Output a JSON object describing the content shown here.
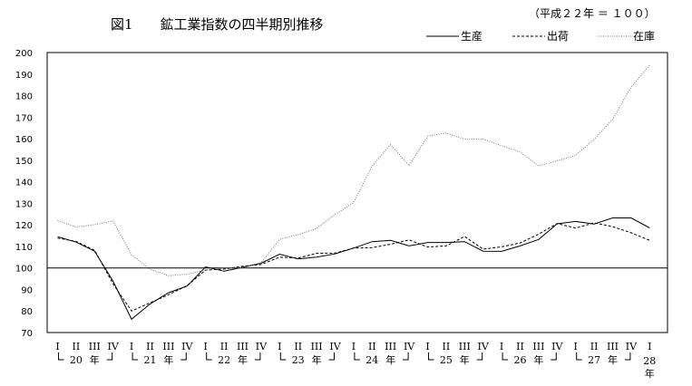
{
  "chart_data": {
    "type": "line",
    "title": "図1　　鉱工業指数の四半期別推移",
    "subtitle": "（平成２２年 ＝ １００）",
    "ylim": [
      70,
      200
    ],
    "yticks": [
      70,
      80,
      90,
      100,
      110,
      120,
      130,
      140,
      150,
      160,
      170,
      180,
      190,
      200
    ],
    "reference_line": 100,
    "grid": false,
    "legend_position": "top-right",
    "quarter_labels": [
      "I",
      "II",
      "III",
      "IV",
      "I",
      "II",
      "III",
      "IV",
      "I",
      "II",
      "III",
      "IV",
      "I",
      "II",
      "III",
      "IV",
      "I",
      "II",
      "III",
      "IV",
      "I",
      "II",
      "III",
      "IV",
      "I",
      "II",
      "III",
      "IV",
      "I",
      "II",
      "III",
      "IV",
      "I"
    ],
    "year_labels": [
      {
        "label": "20",
        "index": 1
      },
      {
        "label": "年",
        "index": 2
      },
      {
        "label": "21",
        "index": 5
      },
      {
        "label": "年",
        "index": 6
      },
      {
        "label": "22",
        "index": 9
      },
      {
        "label": "年",
        "index": 10
      },
      {
        "label": "23",
        "index": 13
      },
      {
        "label": "年",
        "index": 14
      },
      {
        "label": "24",
        "index": 17
      },
      {
        "label": "年",
        "index": 18
      },
      {
        "label": "25",
        "index": 21
      },
      {
        "label": "年",
        "index": 22
      },
      {
        "label": "26",
        "index": 25
      },
      {
        "label": "年",
        "index": 26
      },
      {
        "label": "27",
        "index": 29
      },
      {
        "label": "年",
        "index": 30
      },
      {
        "label": "28",
        "index": 32
      },
      {
        "label": "年",
        "index": 32
      }
    ],
    "series": [
      {
        "name": "生産",
        "style": "solid",
        "color": "#000000",
        "values": [
          114.5,
          112.0,
          107.8,
          93.8,
          76.2,
          83.3,
          88.5,
          91.6,
          100.5,
          98.5,
          100.3,
          102.2,
          106.4,
          104.2,
          105.0,
          106.5,
          109.2,
          112.2,
          112.8,
          110.2,
          111.8,
          111.8,
          112.2,
          107.8,
          107.7,
          110.2,
          113.2,
          120.5,
          121.6,
          120.4,
          123.2,
          123.2,
          118.6
        ]
      },
      {
        "name": "出荷",
        "style": "dashed",
        "color": "#000000",
        "values": [
          113.9,
          112.3,
          108.2,
          92.6,
          80.0,
          83.8,
          87.6,
          91.8,
          99.0,
          99.5,
          100.8,
          101.6,
          105.0,
          104.6,
          106.8,
          106.9,
          109.2,
          109.4,
          111.0,
          113.0,
          109.7,
          110.2,
          114.6,
          108.7,
          109.8,
          111.6,
          115.7,
          120.6,
          118.5,
          120.9,
          119.2,
          116.3,
          112.8
        ]
      },
      {
        "name": "在庫",
        "style": "dotted",
        "color": "#777777",
        "values": [
          122.0,
          119.0,
          120.1,
          121.8,
          106.0,
          99.4,
          96.4,
          97.1,
          99.0,
          100.0,
          100.1,
          102.4,
          113.3,
          115.4,
          118.3,
          124.8,
          130.3,
          147.4,
          157.3,
          147.5,
          161.2,
          162.6,
          159.8,
          159.8,
          156.8,
          153.8,
          147.4,
          149.7,
          152.3,
          159.7,
          169.0,
          184.0,
          194.2
        ]
      }
    ]
  }
}
